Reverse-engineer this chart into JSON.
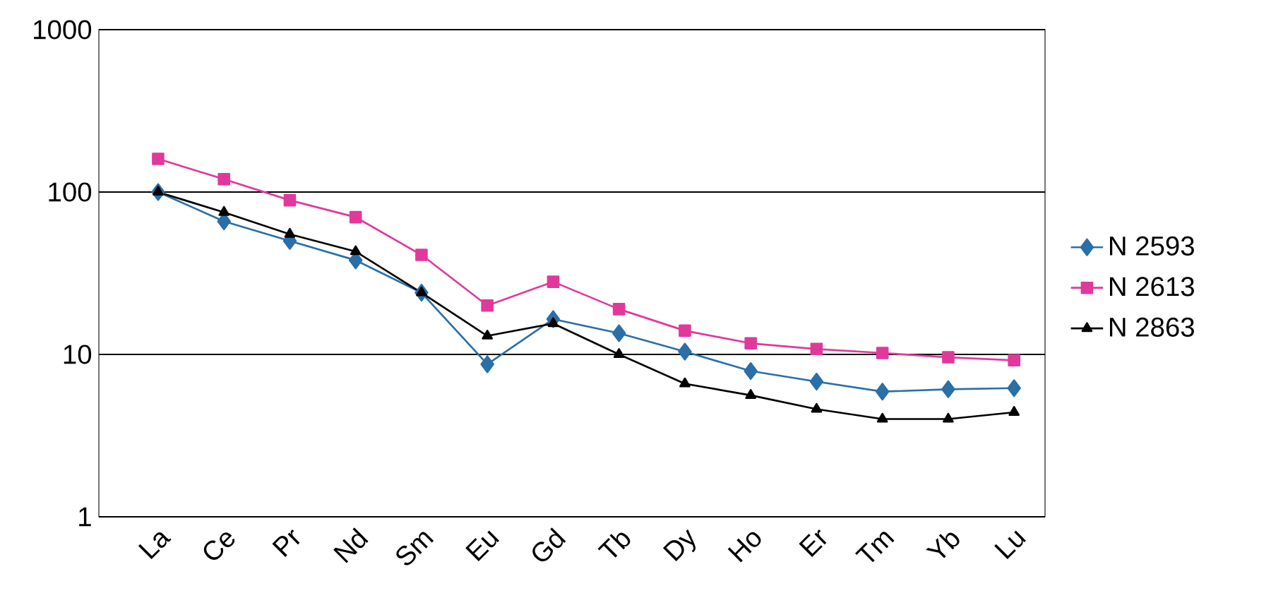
{
  "chart_data": {
    "type": "line",
    "categories": [
      "La",
      "Ce",
      "Pr",
      "Nd",
      "Sm",
      "Eu",
      "Gd",
      "Tb",
      "Dy",
      "Ho",
      "Er",
      "Tm",
      "Yb",
      "Lu"
    ],
    "series": [
      {
        "name": "N  2593",
        "color": "#2a6fa8",
        "marker": "diamond",
        "values": [
          100,
          66,
          50,
          38,
          24,
          8.7,
          16.5,
          13.5,
          10.4,
          7.9,
          6.8,
          5.9,
          6.1,
          6.2
        ]
      },
      {
        "name": "N  2613",
        "color": "#e0399b",
        "marker": "square",
        "values": [
          160,
          120,
          89,
          70,
          41,
          20,
          28,
          19,
          14,
          11.7,
          10.8,
          10.2,
          9.6,
          9.2
        ]
      },
      {
        "name": "N  2863",
        "color": "#000000",
        "marker": "triangle",
        "values": [
          100,
          75,
          55,
          43,
          24,
          13,
          15.5,
          10,
          6.6,
          5.6,
          4.6,
          4.0,
          4.0,
          4.4
        ]
      }
    ],
    "log": "y",
    "ylim": [
      1,
      1000
    ],
    "yticks": [
      1,
      10,
      100,
      1000
    ],
    "grid": "y",
    "legend": "right",
    "line_style": "solid"
  }
}
